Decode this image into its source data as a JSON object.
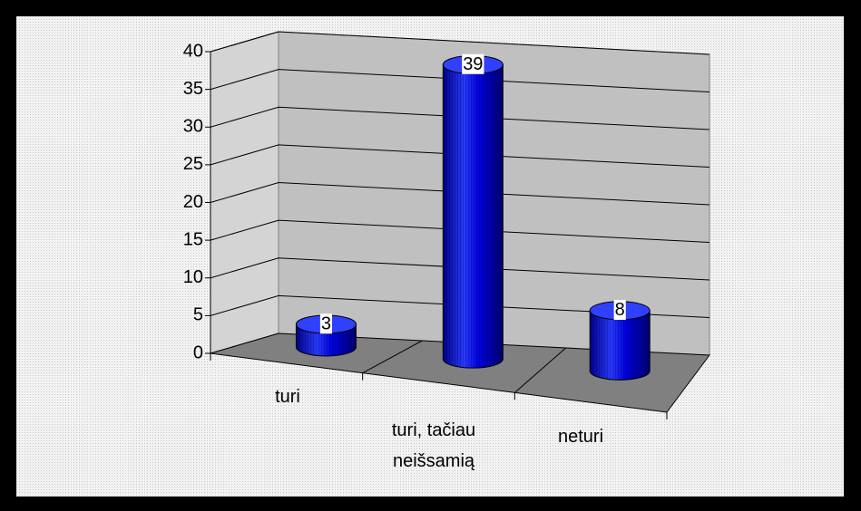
{
  "chart_data": {
    "type": "bar",
    "categories": [
      "turi",
      "turi, tačiau neišsamią",
      "neturi"
    ],
    "values": [
      3,
      39,
      8
    ],
    "color": "#0000e0",
    "ylim": [
      0,
      40
    ],
    "yticks": [
      0,
      5,
      10,
      15,
      20,
      25,
      30,
      35,
      40
    ],
    "grid": true
  }
}
